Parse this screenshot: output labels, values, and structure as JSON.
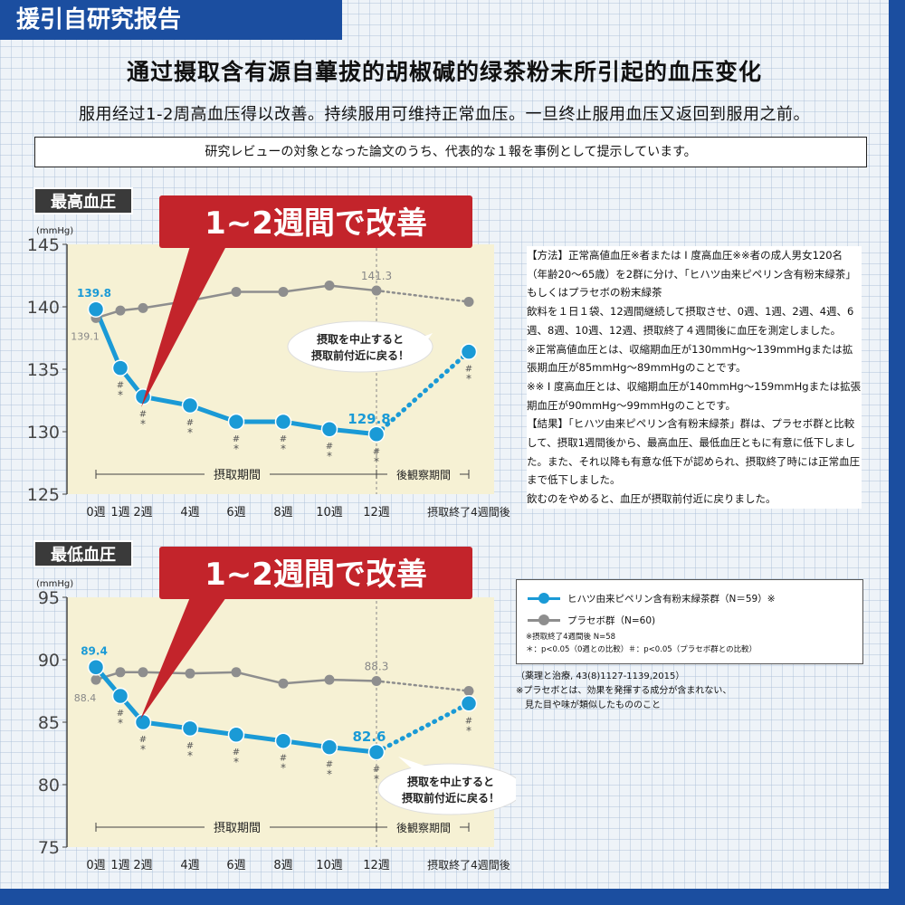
{
  "header": {
    "badge": "援引自研究报告",
    "title": "通过摄取含有源自蓽拔的胡椒碱的绿茶粉末所引起的血压变化",
    "subtitle": "服用经过1-2周高血压得以改善。持续服用可维持正常血压。一旦终止服用血压又返回到服用之前。",
    "notice": "研究レビューの対象となった論文のうち、代表的な１報を事例として提示しています。"
  },
  "colors": {
    "treatment": "#1a9ad6",
    "placebo": "#8e8e8e",
    "callout": "#c3242b",
    "frame": "#1b4ea0",
    "plot_bg": "#f6f1d4"
  },
  "side_text": [
    "【方法】正常高値血圧※者または I 度高血圧※※者の成人男女120名（年齢20〜65歳）を2群に分け、「ヒハツ由来ピペリン含有粉末緑茶」もしくはプラセボの粉末緑茶",
    "飲料を１日１袋、12週間継続して摂取させ、0週、1週、2週、4週、6週、8週、10週、12週、摂取終了４週間後に血圧を測定しました。",
    "※正常高値血圧とは、収縮期血圧が130mmHg〜139mmHgまたは拡張期血圧が85mmHg〜89mmHgのことです。",
    "※※ I 度高血圧とは、収縮期血圧が140mmHg〜159mmHgまたは拡張期血圧が90mmHg〜99mmHgのことです。",
    "【結果】「ヒハツ由来ピペリン含有粉末緑茶」群は、プラセボ群と比較して、摂取1週間後から、最高血圧、最低血圧ともに有意に低下しました。また、それ以降も有意な低下が認められ、摂取終了時には正常血圧まで低下しました。",
    "飲むのをやめると、血圧が摂取前付近に戻りました。"
  ],
  "legend": {
    "treatment": "ヒハツ由来ピペリン含有粉末緑茶群（N＝59）※",
    "placebo": "プラセボ群（N=60)",
    "note1": "※摂取終了4週間後 N=58",
    "note2": "＊：p<0.05（0週との比較）＃：p<0.05（プラセボ群との比較）"
  },
  "citation": {
    "line1": "（薬理と治療, 43(8)1127-1139,2015）",
    "line2": "※プラセボとは、効果を発揮する成分が含まれない、",
    "line3": "　見た目や味が類似したもののこと"
  },
  "chart_data": [
    {
      "type": "line",
      "title": "最高血圧",
      "ylabel": "(mmHg)",
      "ylim": [
        125,
        145
      ],
      "yticks": [
        125,
        130,
        135,
        140,
        145
      ],
      "x_labels": [
        "0週",
        "1週",
        "2週",
        "4週",
        "6週",
        "8週",
        "10週",
        "12週",
        "摂取終了4週間後"
      ],
      "x": [
        0,
        1,
        2,
        4,
        6,
        8,
        10,
        12,
        16
      ],
      "series": [
        {
          "role": "treatment",
          "values": [
            139.8,
            135.1,
            132.8,
            132.1,
            130.8,
            130.8,
            130.2,
            129.8,
            136.4
          ]
        },
        {
          "role": "placebo",
          "values": [
            139.1,
            139.7,
            139.9,
            140.5,
            141.2,
            141.2,
            141.7,
            141.3,
            140.4
          ]
        }
      ],
      "labels": {
        "treatment_start": "139.8",
        "treatment_end": "129.8",
        "placebo_start": "139.1",
        "placebo_end": "141.3"
      },
      "callout": "1~2週間で改善",
      "bubble": [
        "摂取を中止すると",
        "摂取前付近に戻る！"
      ],
      "period_intake": "摂取期間",
      "period_follow": "後観察期間",
      "significance": [
        {
          "x": 1,
          "marks": "#*"
        },
        {
          "x": 2,
          "marks": "#*"
        },
        {
          "x": 4,
          "marks": "#*"
        },
        {
          "x": 6,
          "marks": "#*"
        },
        {
          "x": 8,
          "marks": "#*"
        },
        {
          "x": 10,
          "marks": "#*"
        },
        {
          "x": 12,
          "marks": "#*"
        },
        {
          "x": 16,
          "marks": "#*"
        }
      ]
    },
    {
      "type": "line",
      "title": "最低血圧",
      "ylabel": "(mmHg)",
      "ylim": [
        75,
        95
      ],
      "yticks": [
        75,
        80,
        85,
        90,
        95
      ],
      "x_labels": [
        "0週",
        "1週",
        "2週",
        "4週",
        "6週",
        "8週",
        "10週",
        "12週",
        "摂取終了4週間後"
      ],
      "x": [
        0,
        1,
        2,
        4,
        6,
        8,
        10,
        12,
        16
      ],
      "series": [
        {
          "role": "treatment",
          "values": [
            89.4,
            87.1,
            85.0,
            84.5,
            84.0,
            83.5,
            83.0,
            82.6,
            86.5
          ]
        },
        {
          "role": "placebo",
          "values": [
            88.4,
            89.0,
            89.0,
            88.9,
            89.0,
            88.1,
            88.4,
            88.3,
            87.5
          ]
        }
      ],
      "labels": {
        "treatment_start": "89.4",
        "treatment_end": "82.6",
        "placebo_start": "88.4",
        "placebo_end": "88.3"
      },
      "callout": "1~2週間で改善",
      "bubble": [
        "摂取を中止すると",
        "摂取前付近に戻る！"
      ],
      "period_intake": "摂取期間",
      "period_follow": "後観察期間",
      "significance": [
        {
          "x": 1,
          "marks": "#*"
        },
        {
          "x": 2,
          "marks": "#*"
        },
        {
          "x": 4,
          "marks": "#*"
        },
        {
          "x": 6,
          "marks": "#*"
        },
        {
          "x": 8,
          "marks": "#*"
        },
        {
          "x": 10,
          "marks": "#*"
        },
        {
          "x": 12,
          "marks": "#*"
        },
        {
          "x": 16,
          "marks": "#*"
        }
      ]
    }
  ]
}
